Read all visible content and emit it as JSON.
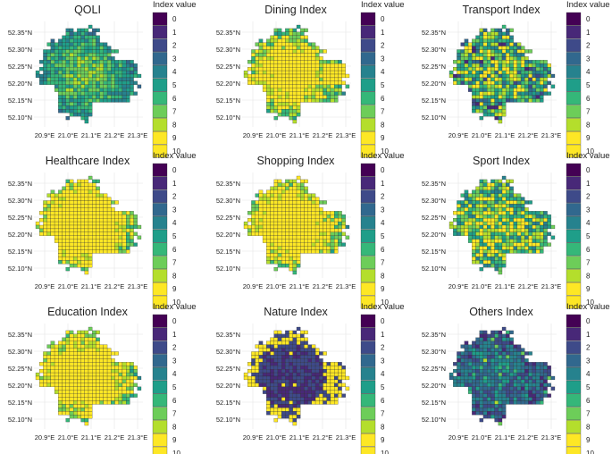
{
  "figure": {
    "legend_title": "Index value",
    "legend_levels": [
      "0",
      "1",
      "2",
      "3",
      "4",
      "5",
      "6",
      "7",
      "8",
      "9",
      "10"
    ],
    "palette": [
      "#440154",
      "#482878",
      "#3e4a89",
      "#31688e",
      "#26828e",
      "#1f9e89",
      "#35b779",
      "#6dcd59",
      "#b4de2c",
      "#fde725",
      "#fde725"
    ],
    "lat_ticks": [
      "52.35°N",
      "52.30°N",
      "52.25°N",
      "52.20°N",
      "52.15°N",
      "52.10°N"
    ],
    "lon_ticks": [
      "20.9°E",
      "21.0°E",
      "21.1°E",
      "21.2°E",
      "21.3°E"
    ]
  },
  "panels": [
    {
      "title": "QOLI",
      "pattern": "qoli"
    },
    {
      "title": "Dining Index",
      "pattern": "dining"
    },
    {
      "title": "Transport Index",
      "pattern": "transport"
    },
    {
      "title": "Healthcare Index",
      "pattern": "healthcare"
    },
    {
      "title": "Shopping Index",
      "pattern": "shopping"
    },
    {
      "title": "Sport Index",
      "pattern": "sport"
    },
    {
      "title": "Education Index",
      "pattern": "education"
    },
    {
      "title": "Nature Index",
      "pattern": "nature"
    },
    {
      "title": "Others Index",
      "pattern": "others"
    }
  ]
}
